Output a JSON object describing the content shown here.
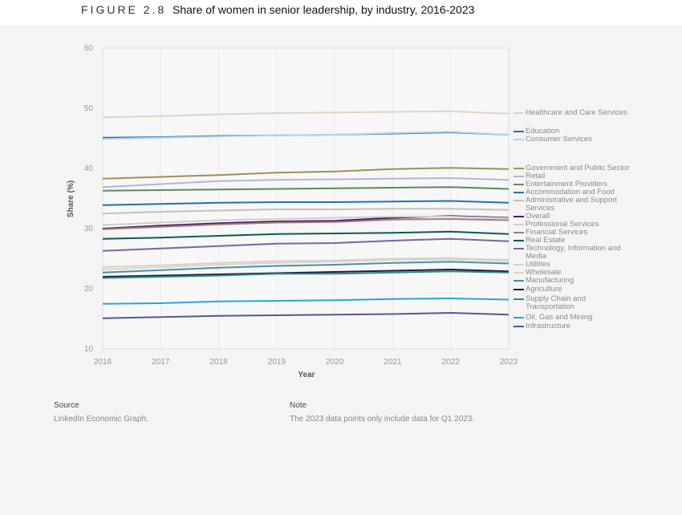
{
  "figure_number": "FIGURE 2.8",
  "figure_title": "Share of women in senior leadership, by industry, 2016-2023",
  "source": {
    "heading": "Source",
    "text": "LinkedIn Economic Graph."
  },
  "note": {
    "heading": "Note",
    "text": "The 2023 data points only include data for Q1 2023."
  },
  "chart_data": {
    "type": "line",
    "xlabel": "Year",
    "ylabel": "Share (%)",
    "x": [
      "2016",
      "2017",
      "2018",
      "2019",
      "2020",
      "2021",
      "2022",
      "2023"
    ],
    "ylim": [
      10,
      60
    ],
    "yticks": [
      "60",
      "50",
      "40",
      "30",
      "20",
      "10"
    ],
    "grid": "vertical",
    "legend": "right",
    "series": [
      {
        "name": "Healthcare and Care Services",
        "color": "#ded6c2",
        "values": [
          48.5,
          48.7,
          49.0,
          49.2,
          49.3,
          49.4,
          49.5,
          49.1
        ]
      },
      {
        "name": "Education",
        "color": "#1e6db0",
        "values": [
          45.1,
          45.2,
          45.4,
          45.5,
          45.6,
          45.8,
          46.0,
          45.6
        ]
      },
      {
        "name": "Consumer Services",
        "color": "#b8d5ef",
        "values": [
          44.9,
          45.1,
          45.3,
          45.5,
          45.6,
          45.9,
          46.1,
          45.6
        ]
      },
      {
        "name": "Government and Public Sector",
        "color": "#a08f58",
        "values": [
          38.3,
          38.6,
          38.9,
          39.3,
          39.5,
          39.9,
          40.1,
          39.9
        ]
      },
      {
        "name": "Retail",
        "color": "#b4b4dc",
        "values": [
          36.9,
          37.4,
          37.9,
          38.1,
          38.2,
          38.3,
          38.4,
          38.1
        ]
      },
      {
        "name": "Entertainment Providers",
        "color": "#5e8a5c",
        "values": [
          36.3,
          36.4,
          36.5,
          36.6,
          36.7,
          36.8,
          36.9,
          36.6
        ]
      },
      {
        "name": "Accommodation and Food",
        "color": "#2470ae",
        "values": [
          33.9,
          34.1,
          34.3,
          34.4,
          34.4,
          34.5,
          34.6,
          34.3
        ]
      },
      {
        "name": "Administrative and Support Services",
        "color": "#cbbfbc",
        "values": [
          32.5,
          32.8,
          33.0,
          33.2,
          33.2,
          33.3,
          33.3,
          33.1
        ]
      },
      {
        "name": "Overall",
        "color": "#4a1a6b",
        "values": [
          30.0,
          30.5,
          30.9,
          31.2,
          31.3,
          31.8,
          32.1,
          31.8
        ]
      },
      {
        "name": "Professional Services",
        "color": "#cfcfcf",
        "values": [
          30.6,
          31.0,
          31.4,
          31.6,
          31.8,
          32.0,
          32.0,
          31.7
        ]
      },
      {
        "name": "Financial Services",
        "color": "#a27c78",
        "values": [
          29.9,
          30.3,
          30.7,
          31.0,
          31.1,
          31.5,
          31.6,
          31.4
        ]
      },
      {
        "name": "Real Estate",
        "color": "#0f5a55",
        "values": [
          28.3,
          28.5,
          28.8,
          29.1,
          29.2,
          29.3,
          29.5,
          29.1
        ]
      },
      {
        "name": "Technology, Information and Media",
        "color": "#7565aa",
        "values": [
          26.3,
          26.7,
          27.1,
          27.5,
          27.6,
          28.0,
          28.3,
          27.9
        ]
      },
      {
        "name": "Utilities",
        "color": "#d2d2d2",
        "values": [
          23.6,
          23.9,
          24.3,
          24.6,
          24.7,
          25.0,
          25.1,
          24.8
        ]
      },
      {
        "name": "Wholesale",
        "color": "#ddd5c0",
        "values": [
          23.2,
          23.6,
          24.0,
          24.3,
          24.5,
          24.8,
          24.9,
          24.6
        ]
      },
      {
        "name": "Manufacturing",
        "color": "#4a8fb0",
        "values": [
          22.7,
          23.1,
          23.5,
          23.8,
          24.0,
          24.3,
          24.5,
          24.2
        ]
      },
      {
        "name": "Agriculture",
        "color": "#1a1a48",
        "values": [
          22.0,
          22.2,
          22.4,
          22.6,
          22.8,
          23.0,
          23.2,
          22.9
        ]
      },
      {
        "name": "Supply Chain and Transportation",
        "color": "#2e8a78",
        "values": [
          21.8,
          22.0,
          22.2,
          22.5,
          22.5,
          22.7,
          22.9,
          22.7
        ]
      },
      {
        "name": "Oil, Gas and Mining",
        "color": "#27a5e0",
        "values": [
          17.5,
          17.6,
          17.9,
          18.0,
          18.1,
          18.3,
          18.4,
          18.2
        ]
      },
      {
        "name": "Infrastructure",
        "color": "#4e5a9a",
        "values": [
          15.1,
          15.3,
          15.5,
          15.6,
          15.7,
          15.8,
          16.0,
          15.7
        ]
      }
    ]
  }
}
